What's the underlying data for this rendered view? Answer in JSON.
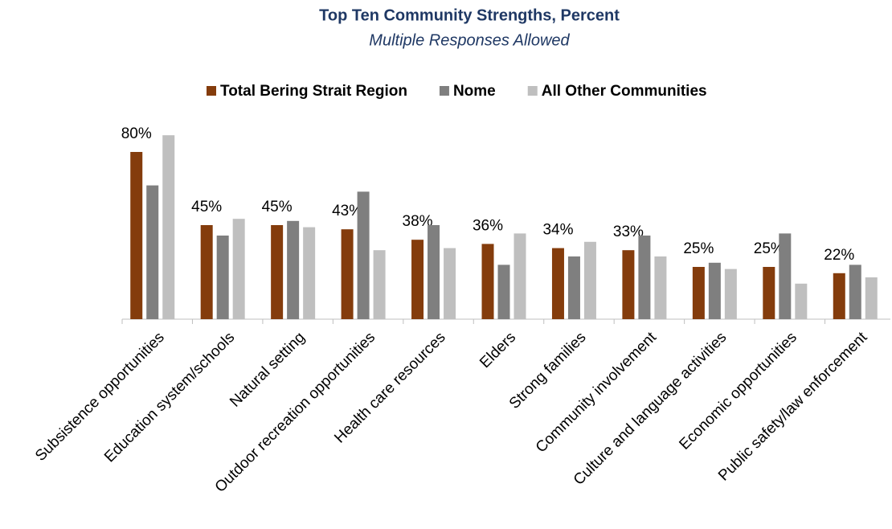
{
  "chart_data": {
    "type": "bar",
    "title": "Top Ten Community Strengths, Percent",
    "subtitle": "Multiple Responses Allowed",
    "categories": [
      "Subsistence opportunities",
      "Education system/schools",
      "Natural setting",
      "Outdoor recreation opportunities",
      "Health care resources",
      "Elders",
      "Strong families",
      "Community involvement",
      "Culture and language activities",
      "Economic opportunities",
      "Public safety/law enforcement"
    ],
    "series": [
      {
        "name": "Total Bering Strait Region",
        "color": "#843c0c",
        "values": [
          80,
          45,
          45,
          43,
          38,
          36,
          34,
          33,
          25,
          25,
          22
        ],
        "value_labels": [
          "80%",
          "45%",
          "45%",
          "43%",
          "38%",
          "36%",
          "34%",
          "33%",
          "25%",
          "25%",
          "22%"
        ]
      },
      {
        "name": "Nome",
        "color": "#7f7f7f",
        "values": [
          64,
          40,
          47,
          61,
          45,
          26,
          30,
          40,
          27,
          41,
          26
        ]
      },
      {
        "name": "All Other Communities",
        "color": "#bfbfbf",
        "values": [
          88,
          48,
          44,
          33,
          34,
          41,
          37,
          30,
          24,
          17,
          20
        ]
      }
    ],
    "ylim": [
      0,
      90
    ],
    "legend": "top"
  }
}
